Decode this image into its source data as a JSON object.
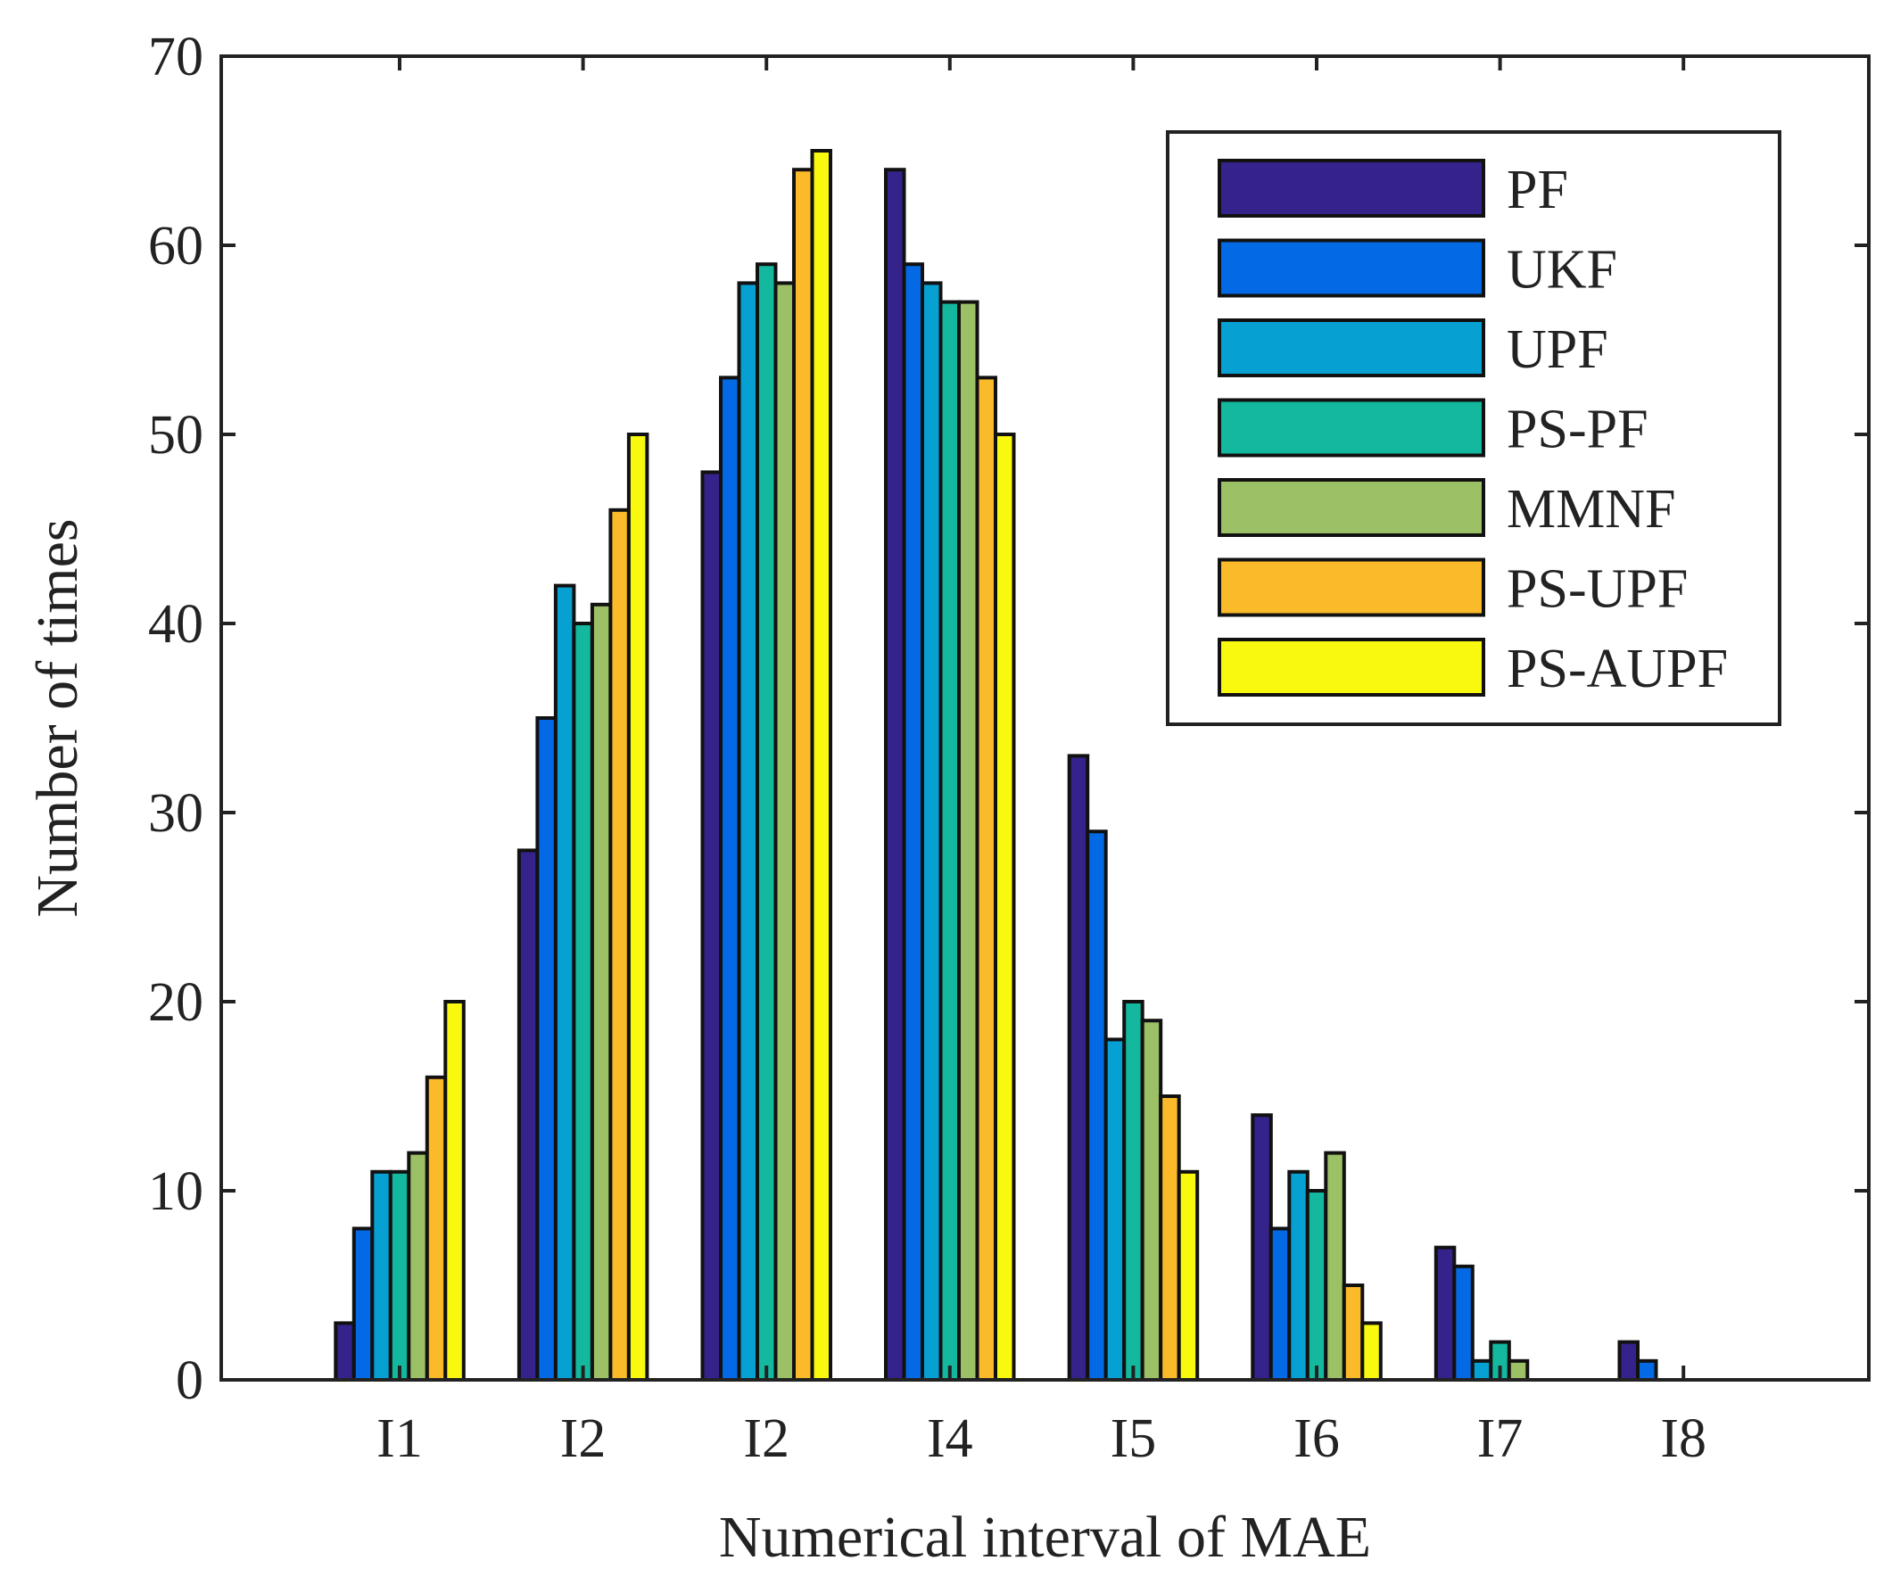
{
  "chart_data": {
    "type": "bar",
    "title": "",
    "xlabel": "Numerical interval of MAE",
    "ylabel": "Number of times",
    "categories": [
      "I1",
      "I2",
      "I2",
      "I4",
      "I5",
      "I6",
      "I7",
      "I8"
    ],
    "ylim": [
      0,
      70
    ],
    "yticks": [
      0,
      10,
      20,
      30,
      40,
      50,
      60,
      70
    ],
    "legend_position": "top-right",
    "series": [
      {
        "name": "PF",
        "color": "#35228a",
        "values": [
          3,
          28,
          48,
          64,
          33,
          14,
          7,
          2
        ]
      },
      {
        "name": "UKF",
        "color": "#0469e4",
        "values": [
          8,
          35,
          53,
          59,
          29,
          8,
          6,
          1
        ]
      },
      {
        "name": "UPF",
        "color": "#07a0d2",
        "values": [
          11,
          42,
          58,
          58,
          18,
          11,
          1,
          0
        ]
      },
      {
        "name": "PS-PF",
        "color": "#13b89e",
        "values": [
          11,
          40,
          59,
          57,
          20,
          10,
          2,
          0
        ]
      },
      {
        "name": "MMNF",
        "color": "#9cc065",
        "values": [
          12,
          41,
          58,
          57,
          19,
          12,
          1,
          0
        ]
      },
      {
        "name": "PS-UPF",
        "color": "#fbba2a",
        "values": [
          16,
          46,
          64,
          53,
          15,
          5,
          0,
          0
        ]
      },
      {
        "name": "PS-AUPF",
        "color": "#f8f90e",
        "values": [
          20,
          50,
          65,
          50,
          11,
          3,
          0,
          0
        ]
      }
    ]
  }
}
